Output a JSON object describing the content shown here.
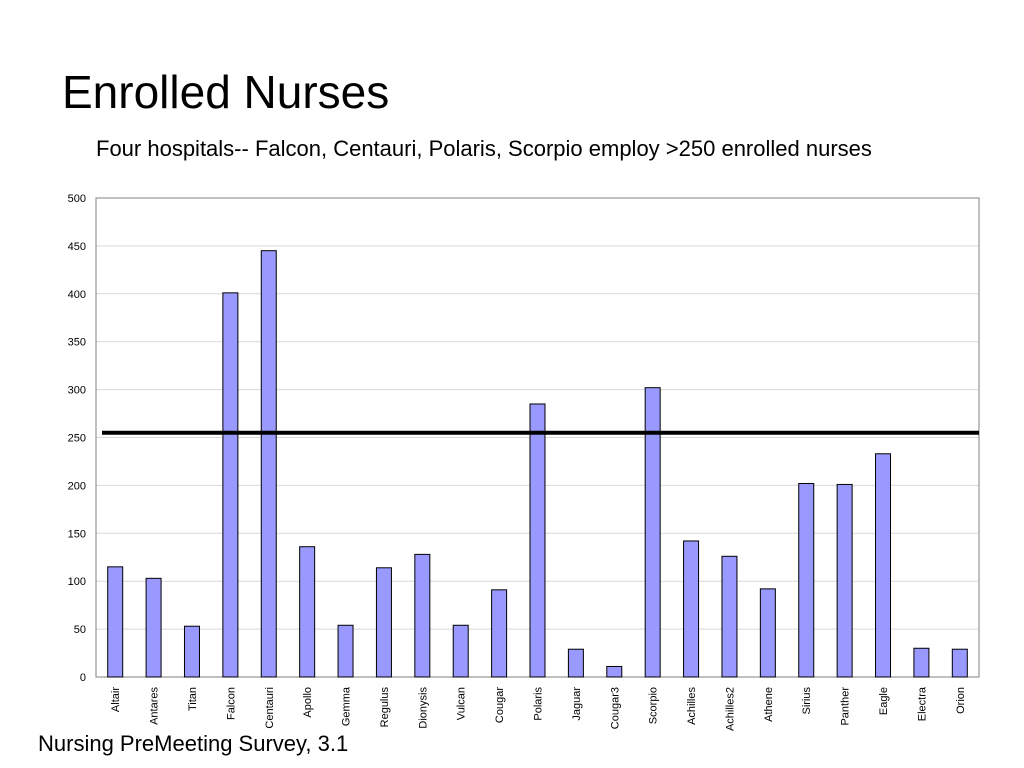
{
  "slide": {
    "title": "Enrolled Nurses",
    "subtitle": "Four hospitals-- Falcon, Centauri, Polaris, Scorpio employ >250 enrolled nurses",
    "footer": "Nursing PreMeeting Survey, 3.1"
  },
  "chart_data": {
    "type": "bar",
    "title": "",
    "xlabel": "",
    "ylabel": "",
    "categories": [
      "Altair",
      "Antares",
      "Titan",
      "Falcon",
      "Centauri",
      "Apollo",
      "Gemma",
      "Regulus",
      "Dionysis",
      "Vulcan",
      "Cougar",
      "Polaris",
      "Jaguar",
      "Cougar3",
      "Scorpio",
      "Achilles",
      "Achilles2",
      "Athene",
      "Sirius",
      "Panther",
      "Eagle",
      "Electra",
      "Orion"
    ],
    "values": [
      115,
      103,
      53,
      401,
      445,
      136,
      54,
      114,
      128,
      54,
      91,
      285,
      29,
      11,
      302,
      142,
      126,
      92,
      202,
      201,
      233,
      30,
      29
    ],
    "ylim": [
      0,
      500
    ],
    "yticks": [
      0,
      50,
      100,
      150,
      200,
      250,
      300,
      350,
      400,
      450,
      500
    ],
    "grid": true,
    "legend": "none",
    "reference_line": 255,
    "colors": {
      "bar_fill": "#9999ff",
      "bar_stroke": "#000000",
      "grid": "#d9d9d9",
      "reference_line": "#000000"
    }
  }
}
